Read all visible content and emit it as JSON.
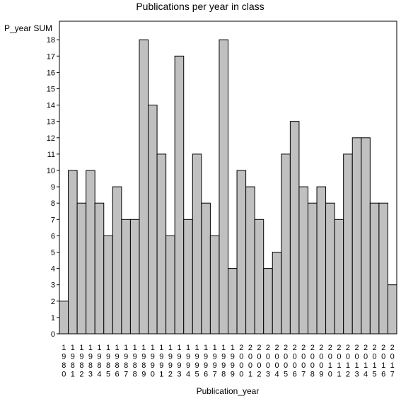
{
  "chart_data": {
    "type": "bar",
    "title": "Publications per year in class",
    "ylabel": "P_year SUM",
    "xlabel": "Publication_year",
    "ylim": [
      0,
      19
    ],
    "yticks": [
      0,
      1,
      2,
      3,
      4,
      5,
      6,
      7,
      8,
      9,
      10,
      11,
      12,
      13,
      14,
      15,
      16,
      17,
      18
    ],
    "grid": false,
    "colors": {
      "bar_fill": "#c0c0c0",
      "bar_stroke": "#000000",
      "axis": "#000000"
    },
    "categories": [
      "1980",
      "1981",
      "1982",
      "1983",
      "1984",
      "1985",
      "1986",
      "1987",
      "1988",
      "1989",
      "1990",
      "1991",
      "1992",
      "1993",
      "1994",
      "1995",
      "1996",
      "1997",
      "1998",
      "1999",
      "2000",
      "2001",
      "2002",
      "2003",
      "2004",
      "2005",
      "2006",
      "2007",
      "2008",
      "2009",
      "2010",
      "2011",
      "2012",
      "2013",
      "2014",
      "2015",
      "2016",
      "2017"
    ],
    "values": [
      2,
      10,
      8,
      10,
      8,
      6,
      9,
      7,
      7,
      18,
      14,
      11,
      6,
      17,
      7,
      11,
      8,
      6,
      18,
      4,
      10,
      9,
      7,
      4,
      5,
      11,
      13,
      9,
      8,
      9,
      8,
      7,
      11,
      12,
      12,
      8,
      8,
      3
    ]
  }
}
